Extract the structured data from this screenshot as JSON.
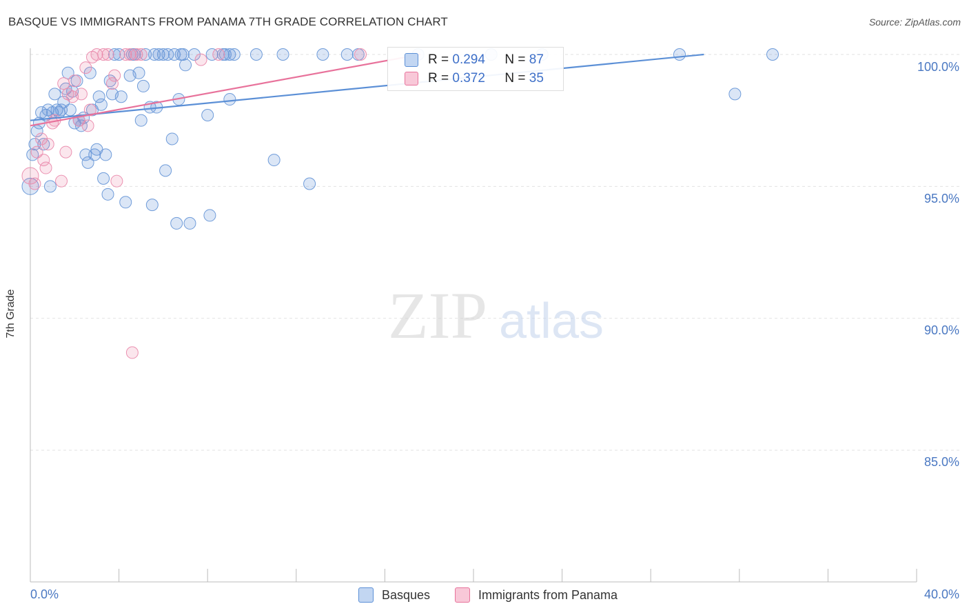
{
  "chart_data": {
    "type": "scatter",
    "title": "BASQUE VS IMMIGRANTS FROM PANAMA 7TH GRADE CORRELATION CHART",
    "source": "Source: ZipAtlas.com",
    "xlabel": "",
    "ylabel": "7th Grade",
    "xlim": [
      0,
      40
    ],
    "ylim": [
      80.4,
      100.4
    ],
    "x_tick_labels": [
      "0.0%",
      "40.0%"
    ],
    "y_ticks": [
      85,
      90,
      95,
      100
    ],
    "y_tick_labels": [
      "85.0%",
      "90.0%",
      "95.0%",
      "100.0%"
    ],
    "grid": true,
    "watermark": "ZIPatlas",
    "legend": [
      {
        "name": "Basques",
        "r_label": "R = ",
        "r": "0.294",
        "n_label": "N = ",
        "n": "87",
        "color": "#5b8fd6"
      },
      {
        "name": "Immigrants from Panama",
        "r_label": "R = ",
        "r": "0.372",
        "n_label": "N = ",
        "n": "35",
        "color": "#e8729b"
      }
    ],
    "series": [
      {
        "name": "Basques",
        "color": "#5b8fd6",
        "trend": {
          "x": [
            0,
            30.4
          ],
          "y": [
            97.5,
            100.0
          ]
        },
        "points": [
          [
            0.0,
            95.0
          ],
          [
            0.1,
            96.2
          ],
          [
            0.2,
            96.6
          ],
          [
            0.3,
            97.1
          ],
          [
            0.4,
            97.4
          ],
          [
            0.5,
            97.8
          ],
          [
            0.6,
            96.6
          ],
          [
            0.7,
            97.7
          ],
          [
            0.8,
            97.9
          ],
          [
            0.9,
            95.0
          ],
          [
            1.0,
            97.8
          ],
          [
            1.1,
            98.5
          ],
          [
            1.2,
            97.9
          ],
          [
            1.3,
            97.8
          ],
          [
            1.4,
            97.9
          ],
          [
            1.5,
            98.2
          ],
          [
            1.6,
            98.7
          ],
          [
            1.7,
            99.3
          ],
          [
            1.8,
            97.9
          ],
          [
            1.9,
            98.6
          ],
          [
            2.0,
            97.4
          ],
          [
            2.1,
            99.0
          ],
          [
            2.2,
            97.5
          ],
          [
            2.3,
            97.3
          ],
          [
            2.4,
            97.6
          ],
          [
            2.5,
            96.2
          ],
          [
            2.6,
            95.9
          ],
          [
            2.7,
            99.3
          ],
          [
            2.8,
            97.9
          ],
          [
            2.9,
            96.2
          ],
          [
            3.0,
            96.4
          ],
          [
            3.1,
            98.4
          ],
          [
            3.2,
            98.1
          ],
          [
            3.3,
            95.3
          ],
          [
            3.4,
            96.2
          ],
          [
            3.5,
            94.7
          ],
          [
            3.6,
            99.0
          ],
          [
            3.7,
            98.5
          ],
          [
            3.8,
            100.0
          ],
          [
            4.0,
            100.0
          ],
          [
            4.1,
            98.4
          ],
          [
            4.3,
            94.4
          ],
          [
            4.5,
            99.2
          ],
          [
            4.6,
            100.0
          ],
          [
            4.7,
            100.0
          ],
          [
            4.9,
            99.3
          ],
          [
            5.0,
            97.5
          ],
          [
            5.1,
            98.8
          ],
          [
            5.2,
            100.0
          ],
          [
            5.4,
            98.0
          ],
          [
            5.5,
            94.3
          ],
          [
            5.6,
            100.0
          ],
          [
            5.7,
            98.0
          ],
          [
            5.8,
            100.0
          ],
          [
            6.0,
            100.0
          ],
          [
            6.1,
            95.6
          ],
          [
            6.2,
            100.0
          ],
          [
            6.4,
            96.8
          ],
          [
            6.5,
            100.0
          ],
          [
            6.6,
            93.6
          ],
          [
            6.7,
            98.3
          ],
          [
            6.8,
            100.0
          ],
          [
            6.9,
            100.0
          ],
          [
            7.0,
            99.6
          ],
          [
            7.2,
            93.6
          ],
          [
            7.4,
            100.0
          ],
          [
            8.0,
            97.7
          ],
          [
            8.1,
            93.9
          ],
          [
            8.2,
            100.0
          ],
          [
            8.7,
            100.0
          ],
          [
            8.8,
            100.0
          ],
          [
            9.0,
            100.0
          ],
          [
            9.0,
            98.3
          ],
          [
            9.2,
            100.0
          ],
          [
            10.2,
            100.0
          ],
          [
            11.0,
            96.0
          ],
          [
            11.4,
            100.0
          ],
          [
            12.6,
            95.1
          ],
          [
            13.2,
            100.0
          ],
          [
            14.3,
            100.0
          ],
          [
            14.8,
            100.0
          ],
          [
            17.5,
            100.0
          ],
          [
            20.8,
            100.0
          ],
          [
            23.1,
            100.0
          ],
          [
            29.3,
            100.0
          ],
          [
            31.8,
            98.5
          ],
          [
            33.5,
            100.0
          ]
        ]
      },
      {
        "name": "Immigrants from Panama",
        "color": "#e8729b",
        "trend": {
          "x": [
            0,
            17.6
          ],
          "y": [
            97.3,
            100.0
          ]
        },
        "points": [
          [
            0.0,
            95.4
          ],
          [
            0.2,
            95.1
          ],
          [
            0.3,
            96.3
          ],
          [
            0.5,
            96.8
          ],
          [
            0.6,
            96.0
          ],
          [
            0.7,
            95.7
          ],
          [
            0.8,
            96.6
          ],
          [
            1.0,
            97.4
          ],
          [
            1.1,
            97.5
          ],
          [
            1.4,
            95.2
          ],
          [
            1.5,
            98.9
          ],
          [
            1.6,
            96.3
          ],
          [
            1.7,
            98.5
          ],
          [
            1.9,
            98.4
          ],
          [
            2.0,
            99.0
          ],
          [
            2.2,
            97.5
          ],
          [
            2.3,
            98.5
          ],
          [
            2.5,
            99.5
          ],
          [
            2.6,
            97.3
          ],
          [
            2.7,
            97.9
          ],
          [
            2.8,
            99.9
          ],
          [
            3.0,
            100.0
          ],
          [
            3.3,
            100.0
          ],
          [
            3.5,
            100.0
          ],
          [
            3.7,
            98.9
          ],
          [
            3.8,
            99.2
          ],
          [
            3.9,
            95.2
          ],
          [
            4.3,
            100.0
          ],
          [
            4.5,
            100.0
          ],
          [
            4.6,
            88.7
          ],
          [
            4.8,
            100.0
          ],
          [
            5.0,
            100.0
          ],
          [
            7.7,
            99.8
          ],
          [
            8.5,
            100.0
          ],
          [
            14.9,
            100.0
          ]
        ]
      }
    ]
  }
}
